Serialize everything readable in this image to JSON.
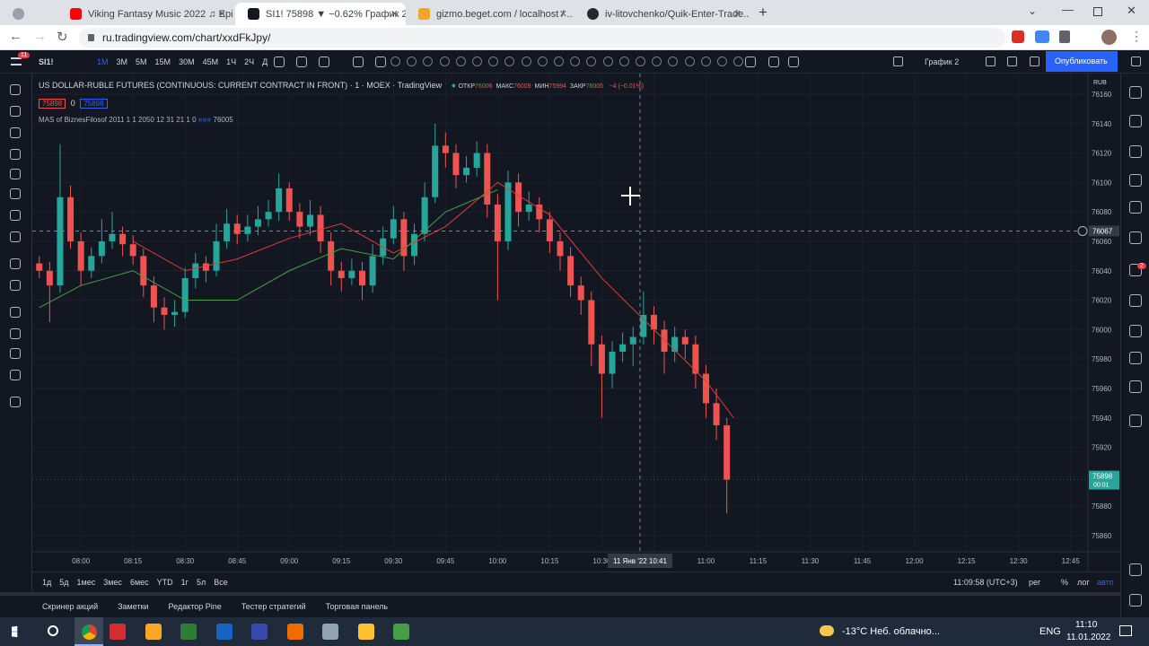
{
  "browser": {
    "tabs": [
      "Viking Fantasy Music 2022 ♫ Epi..",
      "SI1! 75898 ▼ −0.62% График 2",
      "gizmo.beget.com / localhost / ..",
      "iv-litovchenko/Quik-Enter-Trade.."
    ],
    "url": "ru.tradingview.com/chart/xxdFkJpy/"
  },
  "toolbar": {
    "badge": "11",
    "symbol": "SI1!",
    "intervals": [
      "1M",
      "3M",
      "5M",
      "15M",
      "30M",
      "45M",
      "1Ч",
      "2Ч",
      "Д"
    ],
    "layout": "График 2",
    "publish": "Опубликовать",
    "alerts_badge": "2"
  },
  "legend": {
    "title": "US DOLLAR-RUBLE FUTURES (CONTINUOUS: CURRENT CONTRACT IN FRONT)",
    "interval": "1",
    "exchange": "MOEX",
    "source": "TradingView",
    "ohlc": [
      {
        "label": "ОТКР",
        "value": 76006
      },
      {
        "label": "МАКС",
        "value": 76009
      },
      {
        "label": "МИН",
        "value": 75994
      },
      {
        "label": "ЗАКР",
        "value": 76005
      }
    ],
    "change": "−4 (−0.01%)",
    "bid": 75898,
    "spread": 0,
    "ask": 75898,
    "indicator": "MAS of BiznesFilosof 2011 1 1 2050 12 31 21 1 0",
    "indicator_value": 76005
  },
  "chart_data": {
    "type": "candlestick",
    "currency": "RUB",
    "up_color": "#26a69a",
    "down_color": "#ef5350",
    "x": [
      "07:48",
      "07:51",
      "07:54",
      "07:57",
      "08:00",
      "08:03",
      "08:06",
      "08:09",
      "08:12",
      "08:15",
      "08:18",
      "08:21",
      "08:24",
      "08:27",
      "08:30",
      "08:33",
      "08:36",
      "08:39",
      "08:42",
      "08:45",
      "08:48",
      "08:51",
      "08:54",
      "08:57",
      "09:00",
      "09:03",
      "09:06",
      "09:09",
      "09:12",
      "09:15",
      "09:18",
      "09:21",
      "09:24",
      "09:27",
      "09:30",
      "09:33",
      "09:36",
      "09:39",
      "09:42",
      "09:45",
      "09:48",
      "09:51",
      "09:54",
      "09:57",
      "10:00",
      "10:03",
      "10:06",
      "10:09",
      "10:12",
      "10:15",
      "10:18",
      "10:21",
      "10:24",
      "10:27",
      "10:30",
      "10:33",
      "10:36",
      "10:39",
      "10:42",
      "10:45",
      "10:48",
      "10:51",
      "10:54",
      "10:57",
      "11:00",
      "11:03",
      "11:06"
    ],
    "candles": [
      [
        76045,
        76050,
        76035,
        76040
      ],
      [
        76040,
        76046,
        76005,
        76030
      ],
      [
        76030,
        76126,
        76025,
        76090
      ],
      [
        76090,
        76098,
        76055,
        76060
      ],
      [
        76060,
        76066,
        76030,
        76040
      ],
      [
        76040,
        76056,
        76035,
        76050
      ],
      [
        76050,
        76075,
        76045,
        76060
      ],
      [
        76060,
        76080,
        76055,
        76065
      ],
      [
        76065,
        76070,
        76050,
        76058
      ],
      [
        76058,
        76064,
        76044,
        76050
      ],
      [
        76050,
        76055,
        76022,
        76030
      ],
      [
        76030,
        76036,
        76005,
        76015
      ],
      [
        76015,
        76022,
        76000,
        76010
      ],
      [
        76010,
        76020,
        76002,
        76012
      ],
      [
        76012,
        76042,
        76008,
        76035
      ],
      [
        76035,
        76052,
        76028,
        76045
      ],
      [
        76045,
        76050,
        76032,
        76040
      ],
      [
        76040,
        76072,
        76036,
        76060
      ],
      [
        76060,
        76082,
        76055,
        76072
      ],
      [
        76072,
        76078,
        76058,
        76065
      ],
      [
        76065,
        76078,
        76060,
        76070
      ],
      [
        76070,
        76084,
        76064,
        76075
      ],
      [
        76075,
        76088,
        76070,
        76080
      ],
      [
        76080,
        76106,
        76074,
        76096
      ],
      [
        76096,
        76100,
        76074,
        76080
      ],
      [
        76080,
        76086,
        76062,
        76070
      ],
      [
        76070,
        76088,
        76064,
        76078
      ],
      [
        76078,
        76084,
        76052,
        76060
      ],
      [
        76060,
        76066,
        76030,
        76040
      ],
      [
        76040,
        76046,
        76026,
        76035
      ],
      [
        76035,
        76048,
        76030,
        76040
      ],
      [
        76040,
        76046,
        76020,
        76030
      ],
      [
        76030,
        76058,
        76025,
        76050
      ],
      [
        76050,
        76070,
        76044,
        76062
      ],
      [
        76062,
        76084,
        76058,
        76075
      ],
      [
        76075,
        76080,
        76040,
        76050
      ],
      [
        76050,
        76072,
        76044,
        76065
      ],
      [
        76065,
        76100,
        76060,
        76090
      ],
      [
        76090,
        76140,
        76086,
        76125
      ],
      [
        76125,
        76134,
        76110,
        76120
      ],
      [
        76120,
        76126,
        76096,
        76105
      ],
      [
        76105,
        76118,
        76100,
        76110
      ],
      [
        76110,
        76128,
        76104,
        76120
      ],
      [
        76120,
        76126,
        76076,
        76085
      ],
      [
        76085,
        76092,
        76020,
        76060
      ],
      [
        76060,
        76108,
        76054,
        76100
      ],
      [
        76100,
        76106,
        76070,
        76080
      ],
      [
        76080,
        76094,
        76074,
        76085
      ],
      [
        76085,
        76090,
        76066,
        76075
      ],
      [
        76075,
        76080,
        76052,
        76060
      ],
      [
        76060,
        76066,
        76040,
        76050
      ],
      [
        76050,
        76056,
        76022,
        76030
      ],
      [
        76030,
        76036,
        76010,
        76020
      ],
      [
        76020,
        76026,
        75975,
        75990
      ],
      [
        75990,
        75996,
        75940,
        75970
      ],
      [
        75970,
        75992,
        75960,
        75985
      ],
      [
        75985,
        75998,
        75978,
        75990
      ],
      [
        75990,
        76002,
        75975,
        75995
      ],
      [
        75995,
        76026,
        75990,
        76010
      ],
      [
        76010,
        76016,
        75990,
        76000
      ],
      [
        76000,
        76006,
        75970,
        75985
      ],
      [
        75985,
        76002,
        75978,
        75995
      ],
      [
        75995,
        76000,
        75980,
        75990
      ],
      [
        75990,
        75996,
        75960,
        75970
      ],
      [
        75970,
        75976,
        75940,
        75950
      ],
      [
        75950,
        75960,
        75925,
        75935
      ],
      [
        75935,
        75940,
        75875,
        75898
      ]
    ],
    "lines": [
      {
        "color": "#e53935",
        "x": [
          "08:15",
          "08:30",
          "08:45",
          "09:00",
          "09:15",
          "09:30",
          "09:45",
          "10:00",
          "10:15",
          "10:30",
          "10:45",
          "11:00",
          "11:08"
        ],
        "values": [
          76060,
          76040,
          76048,
          76062,
          76072,
          76052,
          76070,
          76100,
          76078,
          76035,
          76000,
          75965,
          75940
        ]
      },
      {
        "color": "#43a047",
        "x": [
          "07:48",
          "08:00",
          "08:15",
          "08:30",
          "08:45",
          "09:00",
          "09:15",
          "09:30",
          "09:45",
          "10:00"
        ],
        "values": [
          76015,
          76030,
          76040,
          76020,
          76020,
          76040,
          76055,
          76048,
          76080,
          76095
        ]
      }
    ],
    "ylim": [
      75849,
      76174
    ],
    "yticks": [
      76160,
      76140,
      76120,
      76100,
      76080,
      76060,
      76040,
      76020,
      76000,
      75980,
      75960,
      75940,
      75920,
      75900,
      75880,
      75860
    ],
    "xlim": [
      "07:46",
      "12:50"
    ],
    "xticks": [
      "08:00",
      "08:15",
      "08:30",
      "08:45",
      "09:00",
      "09:15",
      "09:30",
      "09:45",
      "10:00",
      "10:15",
      "10:30",
      "10:45",
      "11:00",
      "11:15",
      "11:30",
      "11:45",
      "12:00",
      "12:15",
      "12:30",
      "12:45"
    ],
    "grid": true,
    "crosshair": {
      "price": 76067,
      "x": "10:41",
      "label": "11 Янв '22 10:41"
    },
    "last_price": 75898,
    "countdown": "00:01"
  },
  "bottom": {
    "ranges": [
      "1д",
      "5д",
      "1мес",
      "3мес",
      "6мес",
      "YTD",
      "1г",
      "5л",
      "Все"
    ],
    "clock": "11:09:58 (UTC+3)",
    "session": "рег",
    "percent": "%",
    "log": "лог",
    "auto": "авто",
    "panels": [
      "Скринер акций",
      "Заметки",
      "Редактор Pine",
      "Тестер стратегий",
      "Торговая панель"
    ]
  },
  "taskbar": {
    "weather": "-13°C  Неб. облачно...",
    "lang": "ENG",
    "time": "11:10",
    "date": "11.01.2022"
  }
}
